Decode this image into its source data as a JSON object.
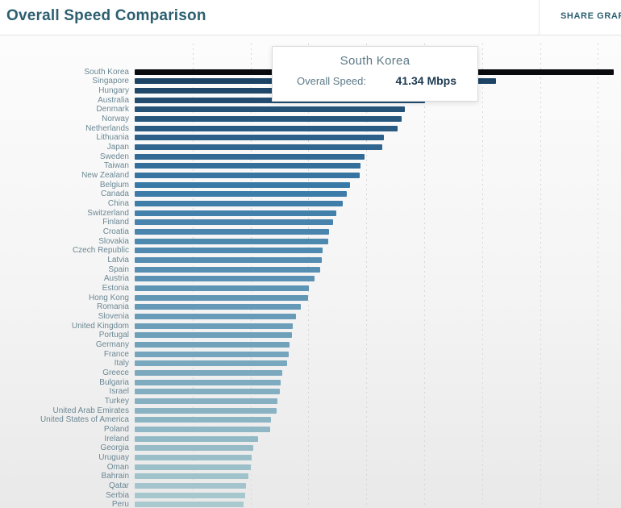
{
  "header": {
    "title": "Overall Speed Comparison",
    "share_button_label": "SHARE GRAPH"
  },
  "tooltip": {
    "country": "South Korea",
    "label": "Overall Speed:",
    "value": "41.34 Mbps"
  },
  "chart_data": {
    "type": "bar",
    "orientation": "horizontal",
    "title": "Overall Speed Comparison",
    "value_unit": "Mbps",
    "xlabel": "",
    "ylabel": "",
    "xlim": [
      0,
      42
    ],
    "gridline_step": 5,
    "grid": true,
    "legend": "none",
    "highlighted_category": "South Korea",
    "categories": [
      "South Korea",
      "Singapore",
      "Hungary",
      "Australia",
      "Denmark",
      "Norway",
      "Netherlands",
      "Lithuania",
      "Japan",
      "Sweden",
      "Taiwan",
      "New Zealand",
      "Belgium",
      "Canada",
      "China",
      "Switzerland",
      "Finland",
      "Croatia",
      "Slovakia",
      "Czech Republic",
      "Latvia",
      "Spain",
      "Austria",
      "Estonia",
      "Hong Kong",
      "Romania",
      "Slovenia",
      "United Kingdom",
      "Portugal",
      "Germany",
      "France",
      "Italy",
      "Greece",
      "Bulgaria",
      "Israel",
      "Turkey",
      "United Arab Emirates",
      "United States of America",
      "Poland",
      "Ireland",
      "Georgia",
      "Uruguay",
      "Oman",
      "Bahrain",
      "Qatar",
      "Serbia",
      "Peru"
    ],
    "values": [
      41.34,
      31.19,
      26.16,
      25.05,
      23.35,
      23.07,
      22.73,
      21.54,
      21.4,
      19.87,
      19.53,
      19.46,
      18.62,
      18.28,
      18.0,
      17.44,
      17.1,
      16.75,
      16.68,
      16.26,
      16.19,
      16.05,
      15.5,
      15.01,
      14.94,
      14.32,
      13.9,
      13.62,
      13.55,
      13.34,
      13.27,
      13.13,
      12.72,
      12.58,
      12.51,
      12.3,
      12.26,
      11.74,
      11.67,
      10.63,
      10.21,
      10.08,
      10.01,
      9.8,
      9.59,
      9.52,
      9.38
    ],
    "colors": {
      "highlight_bar": "#0a0b0f",
      "ramp_stops": [
        {
          "t": 0.0,
          "hex": "#1d4365"
        },
        {
          "t": 0.25,
          "hex": "#3a7aa8"
        },
        {
          "t": 0.6,
          "hex": "#6fa0ba"
        },
        {
          "t": 1.0,
          "hex": "#a9c9ce"
        }
      ],
      "gridline": "#d7d7d7",
      "label_text": "#6b8894",
      "accent_title": "#2d5f70"
    }
  }
}
